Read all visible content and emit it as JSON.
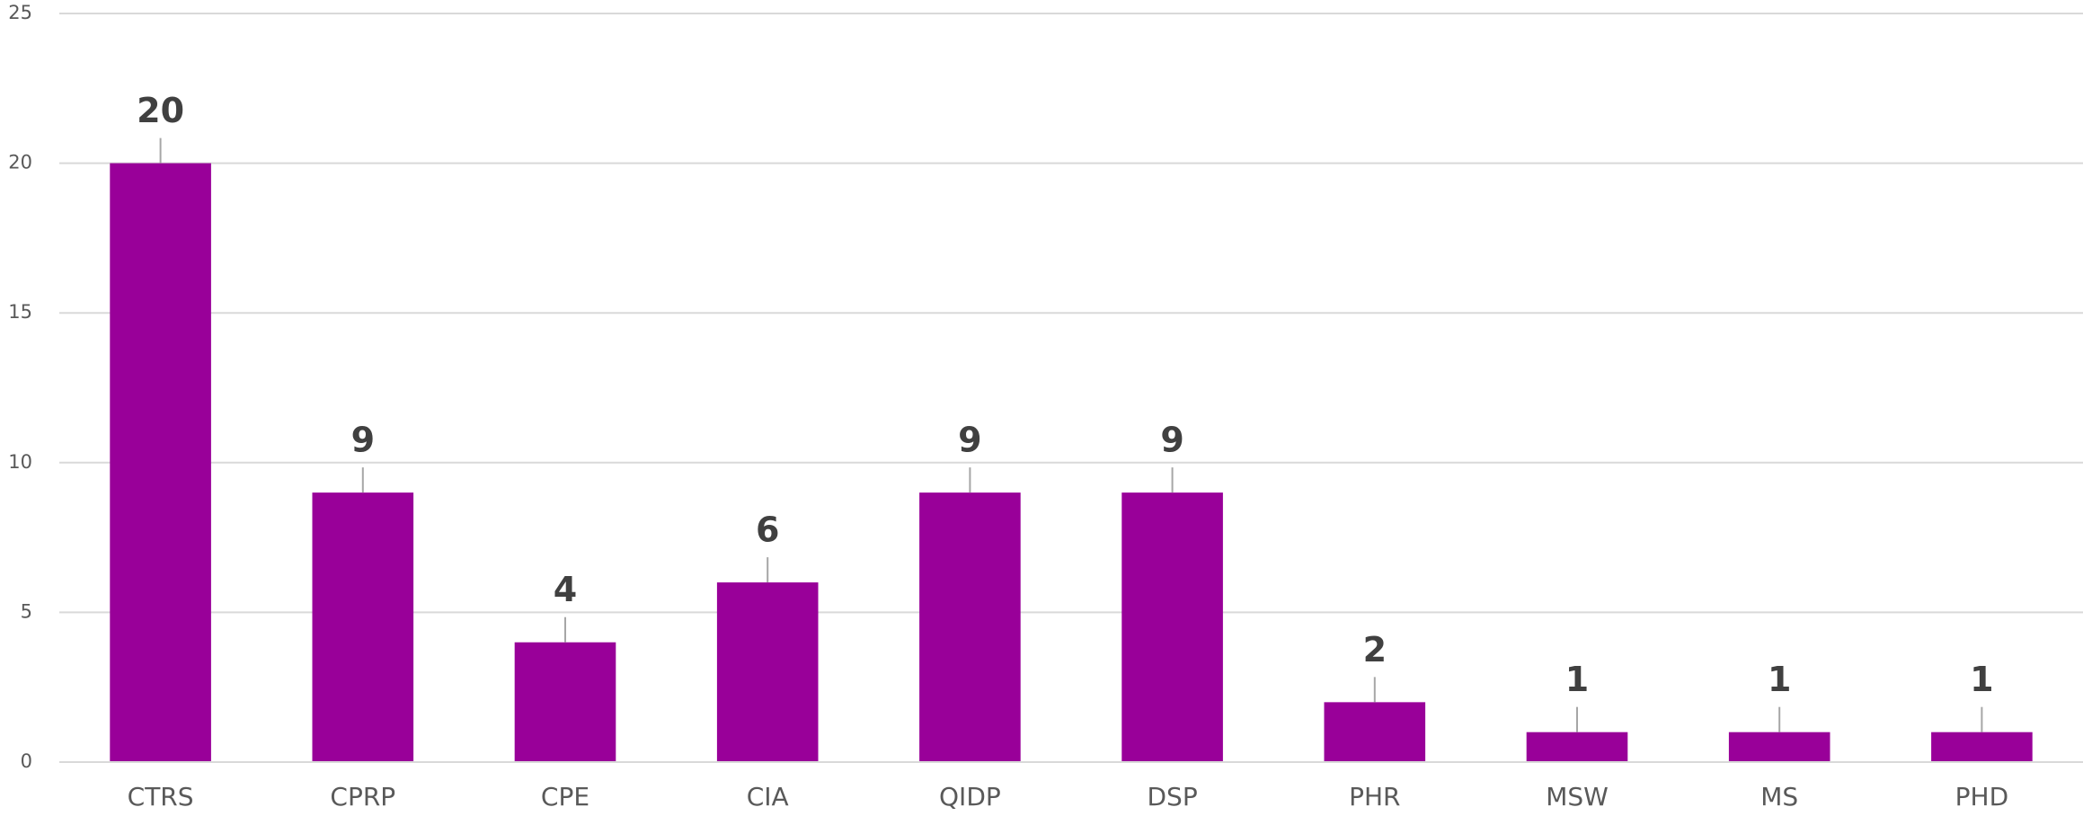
{
  "chart_data": {
    "type": "bar",
    "categories": [
      "CTRS",
      "CPRP",
      "CPE",
      "CIA",
      "QIDP",
      "DSP",
      "PHR",
      "MSW",
      "MS",
      "PHD"
    ],
    "values": [
      20,
      9,
      4,
      6,
      9,
      9,
      2,
      1,
      1,
      1
    ],
    "color": "#990099",
    "ylim": [
      0,
      25
    ],
    "yticks": [
      0,
      5,
      10,
      15,
      20,
      25
    ],
    "grid": true
  }
}
